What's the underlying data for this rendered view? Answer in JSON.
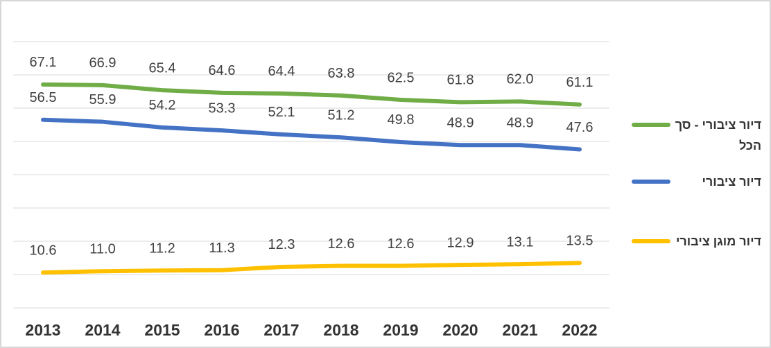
{
  "chart_data": {
    "type": "line",
    "categories": [
      "2013",
      "2014",
      "2015",
      "2016",
      "2017",
      "2018",
      "2019",
      "2020",
      "2021",
      "2022"
    ],
    "series": [
      {
        "name": "דיור ציבורי - סך הכל",
        "color": "#70ad47",
        "values": [
          67.1,
          66.9,
          65.4,
          64.6,
          64.4,
          63.8,
          62.5,
          61.8,
          62.0,
          61.1
        ],
        "value_labels": [
          "67.1",
          "66.9",
          "65.4",
          "64.6",
          "64.4",
          "63.8",
          "62.5",
          "61.8",
          "62.0",
          "61.1"
        ]
      },
      {
        "name": "דיור ציבורי",
        "color": "#4472c4",
        "values": [
          56.5,
          55.9,
          54.2,
          53.3,
          52.1,
          51.2,
          49.8,
          48.9,
          48.9,
          47.6
        ],
        "value_labels": [
          "56.5",
          "55.9",
          "54.2",
          "53.3",
          "52.1",
          "51.2",
          "49.8",
          "48.9",
          "48.9",
          "47.6"
        ]
      },
      {
        "name": "דיור מוגן ציבורי",
        "color": "#ffc000",
        "values": [
          10.6,
          11.0,
          11.2,
          11.3,
          12.3,
          12.6,
          12.6,
          12.9,
          13.1,
          13.5
        ],
        "value_labels": [
          "10.6",
          "11.0",
          "11.2",
          "11.3",
          "12.3",
          "12.6",
          "12.6",
          "12.9",
          "13.1",
          "13.5"
        ]
      }
    ],
    "ylim": [
      0,
      80
    ],
    "yticks": [
      0,
      10,
      20,
      30,
      40,
      50,
      60,
      70,
      80
    ],
    "grid": true,
    "legend": "right"
  }
}
